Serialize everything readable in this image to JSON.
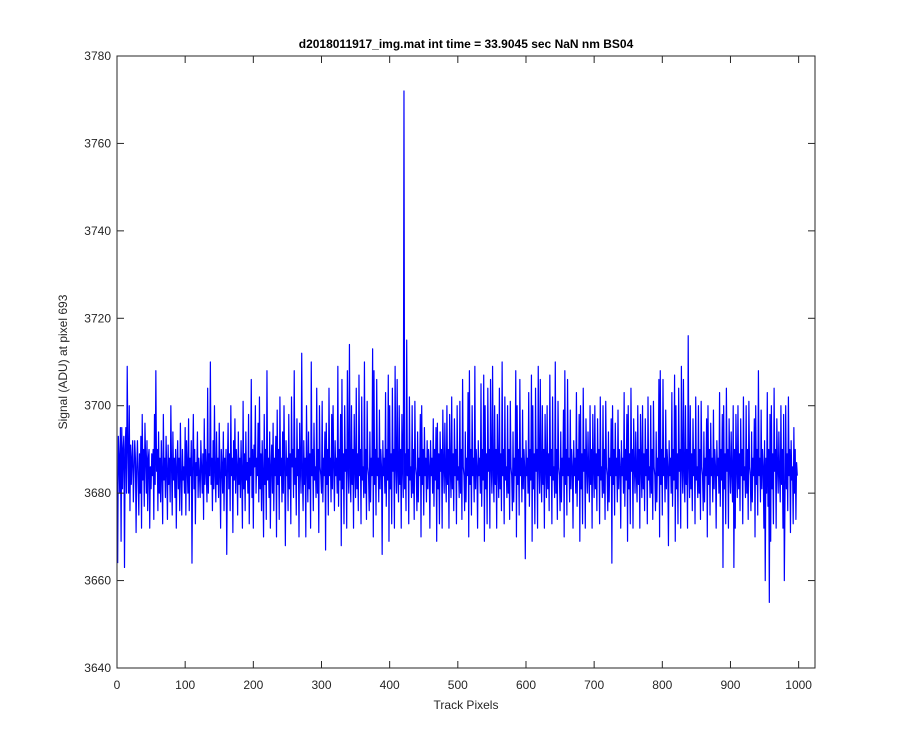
{
  "chart_data": {
    "type": "line",
    "title": "d2018011917_img.mat int time = 33.9045 sec  NaN nm BS04",
    "xlabel": "Track Pixels",
    "ylabel": "Signal (ADU) at pixel 693",
    "xlim": [
      0,
      1024
    ],
    "ylim": [
      3640,
      3780
    ],
    "xticks": [
      0,
      100,
      200,
      300,
      400,
      500,
      600,
      700,
      800,
      900,
      1000
    ],
    "yticks": [
      3640,
      3660,
      3680,
      3700,
      3720,
      3740,
      3760,
      3780
    ],
    "grid": false,
    "legend": "none",
    "series_color": "#0000ff",
    "series": [
      {
        "x_start": 1,
        "x_step": 1,
        "values": [
          3664,
          3693,
          3688,
          3680,
          3695,
          3669,
          3695,
          3681,
          3690,
          3693,
          3663,
          3690,
          3695,
          3680,
          3709,
          3690,
          3680,
          3700,
          3676,
          3691,
          3682,
          3688,
          3692,
          3678,
          3685,
          3692,
          3688,
          3671,
          3686,
          3692,
          3684,
          3675,
          3689,
          3680,
          3693,
          3672,
          3698,
          3683,
          3690,
          3677,
          3696,
          3688,
          3680,
          3692,
          3676,
          3688,
          3690,
          3672,
          3686,
          3681,
          3689,
          3684,
          3690,
          3674,
          3698,
          3682,
          3708,
          3685,
          3690,
          3676,
          3694,
          3680,
          3688,
          3678,
          3692,
          3684,
          3673,
          3698,
          3683,
          3688,
          3679,
          3693,
          3685,
          3674,
          3691,
          3682,
          3688,
          3678,
          3700,
          3686,
          3675,
          3694,
          3683,
          3688,
          3679,
          3690,
          3672,
          3686,
          3692,
          3681,
          3688,
          3676,
          3696,
          3684,
          3675,
          3690,
          3683,
          3686,
          3680,
          3695,
          3675,
          3692,
          3686,
          3680,
          3697,
          3676,
          3688,
          3684,
          3692,
          3664,
          3686,
          3698,
          3681,
          3690,
          3673,
          3687,
          3684,
          3694,
          3679,
          3688,
          3684,
          3679,
          3692,
          3686,
          3680,
          3689,
          3674,
          3697,
          3682,
          3690,
          3685,
          3678,
          3704,
          3680,
          3689,
          3684,
          3710,
          3682,
          3688,
          3676,
          3692,
          3681,
          3700,
          3684,
          3678,
          3694,
          3682,
          3688,
          3679,
          3696,
          3684,
          3672,
          3690,
          3686,
          3680,
          3694,
          3676,
          3688,
          3684,
          3690,
          3666,
          3686,
          3696,
          3681,
          3689,
          3676,
          3700,
          3684,
          3688,
          3671,
          3692,
          3683,
          3697,
          3680,
          3690,
          3686,
          3675,
          3694,
          3682,
          3688,
          3679,
          3692,
          3684,
          3672,
          3701,
          3681,
          3689,
          3676,
          3694,
          3683,
          3687,
          3680,
          3698,
          3673,
          3688,
          3684,
          3706,
          3679,
          3690,
          3672,
          3691,
          3686,
          3700,
          3680,
          3688,
          3684,
          3696,
          3678,
          3702,
          3681,
          3689,
          3676,
          3692,
          3684,
          3670,
          3698,
          3682,
          3690,
          3674,
          3708,
          3683,
          3688,
          3679,
          3694,
          3672,
          3686,
          3691,
          3680,
          3696,
          3676,
          3688,
          3684,
          3693,
          3670,
          3699,
          3682,
          3690,
          3674,
          3702,
          3684,
          3688,
          3678,
          3694,
          3680,
          3700,
          3686,
          3668,
          3692,
          3684,
          3688,
          3676,
          3698,
          3681,
          3689,
          3673,
          3702,
          3686,
          3690,
          3679,
          3708,
          3682,
          3688,
          3675,
          3697,
          3684,
          3690,
          3670,
          3696,
          3686,
          3680,
          3712,
          3684,
          3676,
          3692,
          3682,
          3688,
          3670,
          3700,
          3686,
          3678,
          3694,
          3681,
          3689,
          3672,
          3710,
          3684,
          3690,
          3676,
          3696,
          3683,
          3686,
          3679,
          3704,
          3680,
          3690,
          3671,
          3700,
          3686,
          3684,
          3680,
          3701,
          3678,
          3688,
          3684,
          3694,
          3667,
          3696,
          3682,
          3690,
          3675,
          3704,
          3684,
          3688,
          3678,
          3698,
          3681,
          3700,
          3686,
          3676,
          3692,
          3684,
          3688,
          3680,
          3709,
          3677,
          3690,
          3683,
          3698,
          3668,
          3706,
          3681,
          3689,
          3673,
          3700,
          3685,
          3690,
          3672,
          3708,
          3686,
          3680,
          3714,
          3684,
          3678,
          3700,
          3682,
          3690,
          3672,
          3698,
          3686,
          3679,
          3704,
          3681,
          3689,
          3676,
          3707,
          3684,
          3690,
          3673,
          3702,
          3683,
          3686,
          3679,
          3710,
          3680,
          3690,
          3674,
          3701,
          3686,
          3684,
          3676,
          3694,
          3678,
          3688,
          3684,
          3713,
          3670,
          3708,
          3682,
          3690,
          3675,
          3706,
          3684,
          3688,
          3678,
          3699,
          3681,
          3690,
          3686,
          3666,
          3692,
          3684,
          3688,
          3680,
          3703,
          3677,
          3690,
          3683,
          3707,
          3669,
          3700,
          3681,
          3689,
          3673,
          3704,
          3685,
          3690,
          3672,
          3709,
          3686,
          3680,
          3706,
          3684,
          3678,
          3700,
          3682,
          3690,
          3672,
          3698,
          3686,
          3679,
          3772,
          3681,
          3689,
          3676,
          3715,
          3684,
          3690,
          3673,
          3702,
          3683,
          3686,
          3679,
          3700,
          3680,
          3690,
          3674,
          3701,
          3686,
          3684,
          3676,
          3694,
          3678,
          3688,
          3684,
          3698,
          3670,
          3700,
          3682,
          3690,
          3675,
          3695,
          3684,
          3688,
          3678,
          3692,
          3681,
          3690,
          3686,
          3672,
          3692,
          3684,
          3688,
          3680,
          3697,
          3677,
          3690,
          3683,
          3695,
          3669,
          3696,
          3681,
          3689,
          3673,
          3694,
          3685,
          3690,
          3672,
          3699,
          3686,
          3680,
          3696,
          3684,
          3678,
          3700,
          3682,
          3690,
          3672,
          3698,
          3686,
          3679,
          3702,
          3681,
          3689,
          3676,
          3697,
          3684,
          3690,
          3673,
          3700,
          3683,
          3686,
          3679,
          3701,
          3680,
          3690,
          3674,
          3706,
          3686,
          3684,
          3676,
          3694,
          3678,
          3688,
          3684,
          3703,
          3670,
          3708,
          3682,
          3690,
          3675,
          3700,
          3684,
          3688,
          3678,
          3709,
          3681,
          3690,
          3686,
          3672,
          3692,
          3684,
          3688,
          3680,
          3705,
          3677,
          3690,
          3683,
          3707,
          3669,
          3700,
          3681,
          3689,
          3673,
          3704,
          3685,
          3690,
          3672,
          3706,
          3686,
          3680,
          3709,
          3684,
          3678,
          3700,
          3682,
          3690,
          3672,
          3698,
          3686,
          3679,
          3704,
          3681,
          3689,
          3676,
          3710,
          3684,
          3690,
          3673,
          3702,
          3683,
          3686,
          3679,
          3700,
          3680,
          3690,
          3674,
          3701,
          3686,
          3684,
          3676,
          3694,
          3678,
          3688,
          3684,
          3708,
          3670,
          3700,
          3682,
          3690,
          3675,
          3706,
          3684,
          3688,
          3678,
          3699,
          3681,
          3690,
          3686,
          3665,
          3692,
          3684,
          3688,
          3680,
          3703,
          3677,
          3690,
          3683,
          3707,
          3669,
          3700,
          3681,
          3689,
          3673,
          3704,
          3685,
          3690,
          3672,
          3709,
          3686,
          3680,
          3706,
          3684,
          3678,
          3700,
          3682,
          3690,
          3672,
          3698,
          3686,
          3679,
          3700,
          3681,
          3689,
          3676,
          3707,
          3684,
          3690,
          3673,
          3702,
          3683,
          3686,
          3679,
          3710,
          3680,
          3690,
          3674,
          3701,
          3686,
          3684,
          3676,
          3694,
          3678,
          3688,
          3684,
          3699,
          3670,
          3708,
          3682,
          3690,
          3675,
          3706,
          3684,
          3688,
          3678,
          3699,
          3681,
          3690,
          3686,
          3672,
          3692,
          3684,
          3688,
          3680,
          3703,
          3677,
          3690,
          3683,
          3698,
          3669,
          3700,
          3681,
          3689,
          3673,
          3704,
          3685,
          3690,
          3672,
          3697,
          3686,
          3680,
          3694,
          3684,
          3678,
          3700,
          3682,
          3690,
          3672,
          3698,
          3686,
          3679,
          3700,
          3681,
          3689,
          3676,
          3697,
          3684,
          3690,
          3673,
          3702,
          3683,
          3686,
          3679,
          3700,
          3680,
          3690,
          3674,
          3701,
          3686,
          3684,
          3676,
          3694,
          3678,
          3688,
          3684,
          3697,
          3664,
          3700,
          3682,
          3690,
          3675,
          3696,
          3684,
          3688,
          3678,
          3699,
          3681,
          3690,
          3686,
          3672,
          3692,
          3684,
          3688,
          3680,
          3703,
          3677,
          3690,
          3683,
          3698,
          3669,
          3700,
          3681,
          3689,
          3673,
          3704,
          3685,
          3690,
          3672,
          3697,
          3686,
          3680,
          3694,
          3684,
          3678,
          3700,
          3682,
          3690,
          3672,
          3698,
          3686,
          3679,
          3700,
          3681,
          3689,
          3676,
          3697,
          3684,
          3690,
          3673,
          3702,
          3683,
          3686,
          3679,
          3700,
          3680,
          3690,
          3674,
          3701,
          3686,
          3684,
          3676,
          3694,
          3678,
          3688,
          3684,
          3706,
          3670,
          3708,
          3682,
          3690,
          3675,
          3706,
          3684,
          3688,
          3678,
          3699,
          3681,
          3690,
          3686,
          3668,
          3692,
          3684,
          3688,
          3680,
          3703,
          3677,
          3690,
          3683,
          3707,
          3669,
          3700,
          3681,
          3689,
          3673,
          3704,
          3685,
          3690,
          3672,
          3709,
          3686,
          3680,
          3706,
          3684,
          3678,
          3700,
          3682,
          3690,
          3672,
          3716,
          3686,
          3679,
          3700,
          3681,
          3689,
          3676,
          3697,
          3684,
          3690,
          3673,
          3702,
          3683,
          3686,
          3679,
          3700,
          3680,
          3690,
          3674,
          3701,
          3686,
          3684,
          3676,
          3694,
          3678,
          3688,
          3684,
          3697,
          3670,
          3700,
          3682,
          3690,
          3675,
          3696,
          3684,
          3688,
          3678,
          3699,
          3681,
          3690,
          3686,
          3672,
          3692,
          3684,
          3688,
          3680,
          3703,
          3677,
          3690,
          3683,
          3698,
          3663,
          3700,
          3681,
          3689,
          3673,
          3704,
          3685,
          3690,
          3672,
          3697,
          3686,
          3680,
          3694,
          3684,
          3678,
          3700,
          3663,
          3690,
          3672,
          3698,
          3686,
          3679,
          3700,
          3681,
          3689,
          3676,
          3697,
          3684,
          3690,
          3673,
          3702,
          3683,
          3686,
          3679,
          3700,
          3680,
          3690,
          3674,
          3701,
          3686,
          3684,
          3676,
          3694,
          3678,
          3688,
          3684,
          3697,
          3670,
          3700,
          3682,
          3690,
          3675,
          3708,
          3684,
          3688,
          3678,
          3699,
          3681,
          3690,
          3686,
          3672,
          3692,
          3660,
          3688,
          3680,
          3703,
          3677,
          3690,
          3655,
          3698,
          3669,
          3700,
          3681,
          3689,
          3673,
          3704,
          3685,
          3690,
          3672,
          3697,
          3686,
          3680,
          3694,
          3684,
          3678,
          3700,
          3682,
          3690,
          3672,
          3698,
          3660,
          3679,
          3700,
          3681,
          3689,
          3676,
          3702,
          3684,
          3690,
          3671,
          3692,
          3683,
          3686,
          3673,
          3695,
          3680,
          3690,
          3674,
          3687,
          3684
        ]
      }
    ]
  }
}
